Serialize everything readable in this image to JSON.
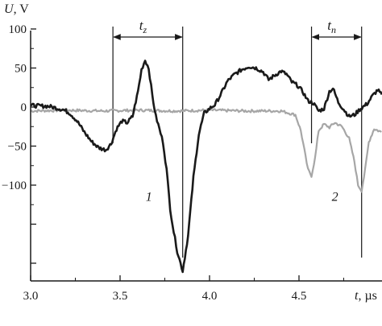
{
  "chart_data": {
    "type": "line",
    "xlabel": "t",
    "xunit": ", µs",
    "ylabel": "U",
    "yunit": ", V",
    "xlim": [
      3.0,
      4.8
    ],
    "ylim": [
      -220,
      100
    ],
    "xticks": [
      {
        "value": 3.0,
        "label": "3.0"
      },
      {
        "value": 3.5,
        "label": "3.5"
      },
      {
        "value": 4.0,
        "label": "4.0"
      },
      {
        "value": 4.5,
        "label": "4.5"
      }
    ],
    "yticks": [
      {
        "value": 100,
        "label": "100"
      },
      {
        "value": 50,
        "label": "50"
      },
      {
        "value": 0,
        "label": "0"
      },
      {
        "value": -50,
        "label": "−50"
      },
      {
        "value": -100,
        "label": "−100"
      }
    ],
    "extra_yticks": [
      -150,
      -200
    ],
    "series": [
      {
        "name": "1",
        "color": "#1a1a1a",
        "points": [
          [
            3.0,
            2
          ],
          [
            3.1,
            1
          ],
          [
            3.18,
            -3
          ],
          [
            3.22,
            -8
          ],
          [
            3.26,
            -18
          ],
          [
            3.3,
            -32
          ],
          [
            3.34,
            -44
          ],
          [
            3.38,
            -52
          ],
          [
            3.42,
            -55
          ],
          [
            3.45,
            -47
          ],
          [
            3.48,
            -28
          ],
          [
            3.51,
            -18
          ],
          [
            3.54,
            -20
          ],
          [
            3.57,
            -12
          ],
          [
            3.6,
            20
          ],
          [
            3.62,
            48
          ],
          [
            3.64,
            60
          ],
          [
            3.66,
            50
          ],
          [
            3.68,
            15
          ],
          [
            3.7,
            -12
          ],
          [
            3.72,
            -28
          ],
          [
            3.74,
            -45
          ],
          [
            3.76,
            -80
          ],
          [
            3.78,
            -130
          ],
          [
            3.8,
            -160
          ],
          [
            3.82,
            -185
          ],
          [
            3.85,
            -210
          ],
          [
            3.88,
            -165
          ],
          [
            3.91,
            -90
          ],
          [
            3.94,
            -35
          ],
          [
            3.97,
            -8
          ],
          [
            4.0,
            -2
          ],
          [
            4.03,
            3
          ],
          [
            4.06,
            15
          ],
          [
            4.1,
            33
          ],
          [
            4.14,
            42
          ],
          [
            4.18,
            48
          ],
          [
            4.22,
            52
          ],
          [
            4.26,
            50
          ],
          [
            4.3,
            45
          ],
          [
            4.33,
            35
          ],
          [
            4.36,
            40
          ],
          [
            4.4,
            46
          ],
          [
            4.43,
            42
          ],
          [
            4.46,
            32
          ],
          [
            4.49,
            28
          ],
          [
            4.52,
            20
          ],
          [
            4.55,
            8
          ],
          [
            4.58,
            5
          ],
          [
            4.61,
            -5
          ],
          [
            4.64,
            -2
          ],
          [
            4.67,
            20
          ],
          [
            4.69,
            24
          ],
          [
            4.72,
            6
          ],
          [
            4.75,
            -3
          ],
          [
            4.78,
            -12
          ],
          [
            4.81,
            -10
          ],
          [
            4.84,
            -3
          ],
          [
            4.88,
            4
          ],
          [
            4.91,
            14
          ],
          [
            4.94,
            22
          ],
          [
            4.98,
            10
          ],
          [
            5.02,
            -5
          ]
        ]
      },
      {
        "name": "2",
        "color": "#a6a6a6",
        "points": [
          [
            3.0,
            -5
          ],
          [
            3.2,
            -4
          ],
          [
            3.4,
            -5
          ],
          [
            3.6,
            -4
          ],
          [
            3.8,
            -5
          ],
          [
            4.0,
            -4
          ],
          [
            4.2,
            -5
          ],
          [
            4.4,
            -5
          ],
          [
            4.48,
            -10
          ],
          [
            4.51,
            -30
          ],
          [
            4.53,
            -55
          ],
          [
            4.55,
            -80
          ],
          [
            4.57,
            -88
          ],
          [
            4.59,
            -65
          ],
          [
            4.61,
            -30
          ],
          [
            4.64,
            -22
          ],
          [
            4.67,
            -26
          ],
          [
            4.7,
            -20
          ],
          [
            4.74,
            -25
          ],
          [
            4.78,
            -40
          ],
          [
            4.81,
            -70
          ],
          [
            4.83,
            -100
          ],
          [
            4.85,
            -107
          ],
          [
            4.87,
            -80
          ],
          [
            4.89,
            -45
          ],
          [
            4.92,
            -28
          ],
          [
            4.96,
            -32
          ],
          [
            5.0,
            -28
          ],
          [
            5.02,
            -27
          ]
        ]
      }
    ],
    "curve_labels": [
      {
        "text": "1",
        "x": 3.76,
        "y": -110
      },
      {
        "text": "2",
        "x": 4.8,
        "y": -110
      }
    ],
    "intervals": [
      {
        "label_main": "t",
        "label_sub": "z",
        "x_start": 3.46,
        "x_end": 3.85
      },
      {
        "label_main": "t",
        "label_sub": "n",
        "x_start": 4.57,
        "x_end": 4.85
      }
    ],
    "grid": false,
    "legend": "none"
  }
}
